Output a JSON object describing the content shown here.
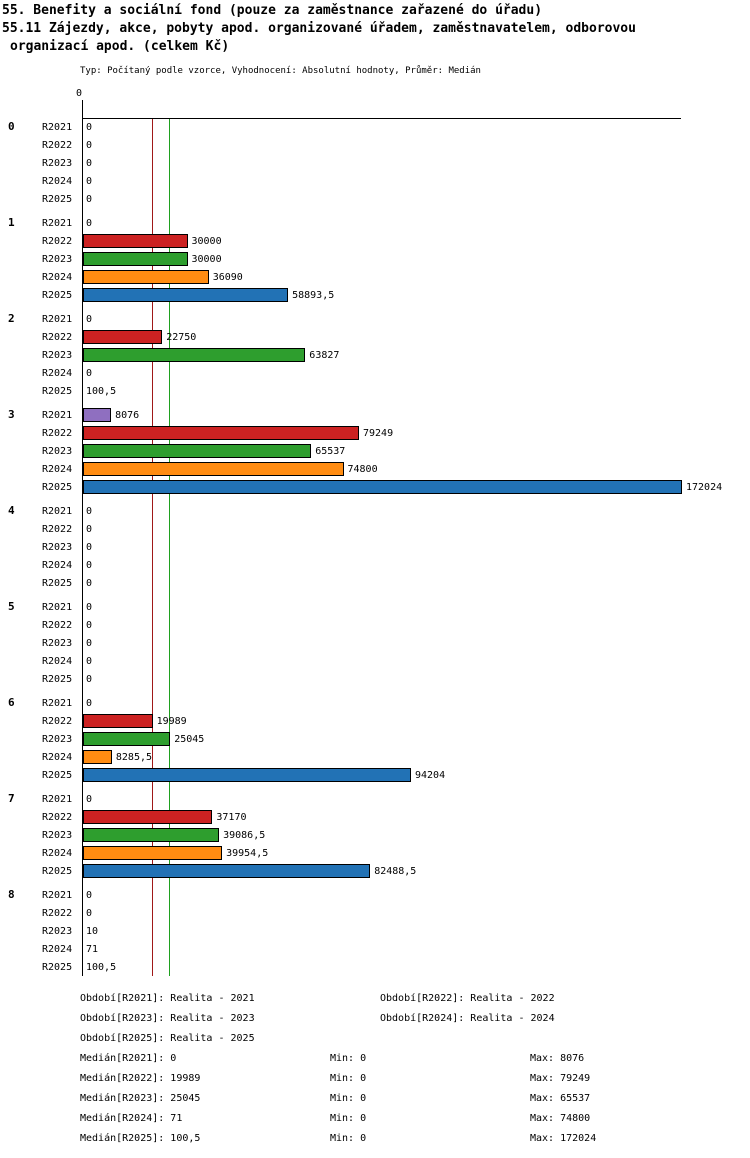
{
  "header": {
    "line1": "55. Benefity a sociální fond (pouze za zaměstnance zařazené do úřadu)",
    "line2": "55.11 Zájezdy, akce, pobyty apod. organizované úřadem, zaměstnavatelem, odborovou",
    "line3": "organizací apod. (celkem Kč)",
    "meta": "Typ: Počítaný podle vzorce, Vyhodnocení: Absolutní hodnoty, Průměr: Medián"
  },
  "chart_data": {
    "type": "bar",
    "orientation": "horizontal",
    "unit": "Kč",
    "x_axis": {
      "origin_label": "0",
      "max": 172024
    },
    "series": [
      "R2021",
      "R2022",
      "R2023",
      "R2024",
      "R2025"
    ],
    "series_colors": {
      "R2021": "#8f6fc0",
      "R2022": "#cc2222",
      "R2023": "#2e9e2e",
      "R2024": "#ff8c12",
      "R2025": "#2272b5"
    },
    "reference_lines": [
      {
        "year": "R2022",
        "value": 19989,
        "color": "#a01818"
      },
      {
        "year": "R2023",
        "value": 25045,
        "color": "#1fa01f"
      }
    ],
    "groups": [
      {
        "label": "0",
        "bars": [
          {
            "year": "R2021",
            "value": 0,
            "display": "0"
          },
          {
            "year": "R2022",
            "value": 0,
            "display": "0"
          },
          {
            "year": "R2023",
            "value": 0,
            "display": "0"
          },
          {
            "year": "R2024",
            "value": 0,
            "display": "0"
          },
          {
            "year": "R2025",
            "value": 0,
            "display": "0"
          }
        ]
      },
      {
        "label": "1",
        "bars": [
          {
            "year": "R2021",
            "value": 0,
            "display": "0"
          },
          {
            "year": "R2022",
            "value": 30000,
            "display": "30000"
          },
          {
            "year": "R2023",
            "value": 30000,
            "display": "30000"
          },
          {
            "year": "R2024",
            "value": 36090,
            "display": "36090"
          },
          {
            "year": "R2025",
            "value": 58893.5,
            "display": "58893,5"
          }
        ]
      },
      {
        "label": "2",
        "bars": [
          {
            "year": "R2021",
            "value": 0,
            "display": "0"
          },
          {
            "year": "R2022",
            "value": 22750,
            "display": "22750"
          },
          {
            "year": "R2023",
            "value": 63827,
            "display": "63827"
          },
          {
            "year": "R2024",
            "value": 0,
            "display": "0"
          },
          {
            "year": "R2025",
            "value": 100.5,
            "display": "100,5"
          }
        ]
      },
      {
        "label": "3",
        "bars": [
          {
            "year": "R2021",
            "value": 8076,
            "display": "8076"
          },
          {
            "year": "R2022",
            "value": 79249,
            "display": "79249"
          },
          {
            "year": "R2023",
            "value": 65537,
            "display": "65537"
          },
          {
            "year": "R2024",
            "value": 74800,
            "display": "74800"
          },
          {
            "year": "R2025",
            "value": 172024,
            "display": "172024"
          }
        ]
      },
      {
        "label": "4",
        "bars": [
          {
            "year": "R2021",
            "value": 0,
            "display": "0"
          },
          {
            "year": "R2022",
            "value": 0,
            "display": "0"
          },
          {
            "year": "R2023",
            "value": 0,
            "display": "0"
          },
          {
            "year": "R2024",
            "value": 0,
            "display": "0"
          },
          {
            "year": "R2025",
            "value": 0,
            "display": "0"
          }
        ]
      },
      {
        "label": "5",
        "bars": [
          {
            "year": "R2021",
            "value": 0,
            "display": "0"
          },
          {
            "year": "R2022",
            "value": 0,
            "display": "0"
          },
          {
            "year": "R2023",
            "value": 0,
            "display": "0"
          },
          {
            "year": "R2024",
            "value": 0,
            "display": "0"
          },
          {
            "year": "R2025",
            "value": 0,
            "display": "0"
          }
        ]
      },
      {
        "label": "6",
        "bars": [
          {
            "year": "R2021",
            "value": 0,
            "display": "0"
          },
          {
            "year": "R2022",
            "value": 19989,
            "display": "19989"
          },
          {
            "year": "R2023",
            "value": 25045,
            "display": "25045"
          },
          {
            "year": "R2024",
            "value": 8285.5,
            "display": "8285,5"
          },
          {
            "year": "R2025",
            "value": 94204,
            "display": "94204"
          }
        ]
      },
      {
        "label": "7",
        "bars": [
          {
            "year": "R2021",
            "value": 0,
            "display": "0"
          },
          {
            "year": "R2022",
            "value": 37170,
            "display": "37170"
          },
          {
            "year": "R2023",
            "value": 39086.5,
            "display": "39086,5"
          },
          {
            "year": "R2024",
            "value": 39954.5,
            "display": "39954,5"
          },
          {
            "year": "R2025",
            "value": 82488.5,
            "display": "82488,5"
          }
        ]
      },
      {
        "label": "8",
        "bars": [
          {
            "year": "R2021",
            "value": 0,
            "display": "0"
          },
          {
            "year": "R2022",
            "value": 0,
            "display": "0"
          },
          {
            "year": "R2023",
            "value": 10,
            "display": "10"
          },
          {
            "year": "R2024",
            "value": 71,
            "display": "71"
          },
          {
            "year": "R2025",
            "value": 100.5,
            "display": "100,5"
          }
        ]
      }
    ]
  },
  "legend": {
    "periods": [
      "Období[R2021]: Realita - 2021",
      "Období[R2022]: Realita - 2022",
      "Období[R2023]: Realita - 2023",
      "Období[R2024]: Realita - 2024",
      "Období[R2025]: Realita - 2025"
    ],
    "stats": [
      {
        "median": "Medián[R2021]: 0",
        "min": "Min: 0",
        "max": "Max: 8076"
      },
      {
        "median": "Medián[R2022]: 19989",
        "min": "Min: 0",
        "max": "Max: 79249"
      },
      {
        "median": "Medián[R2023]: 25045",
        "min": "Min: 0",
        "max": "Max: 65537"
      },
      {
        "median": "Medián[R2024]: 71",
        "min": "Min: 0",
        "max": "Max: 74800"
      },
      {
        "median": "Medián[R2025]: 100,5",
        "min": "Min: 0",
        "max": "Max: 172024"
      }
    ]
  }
}
